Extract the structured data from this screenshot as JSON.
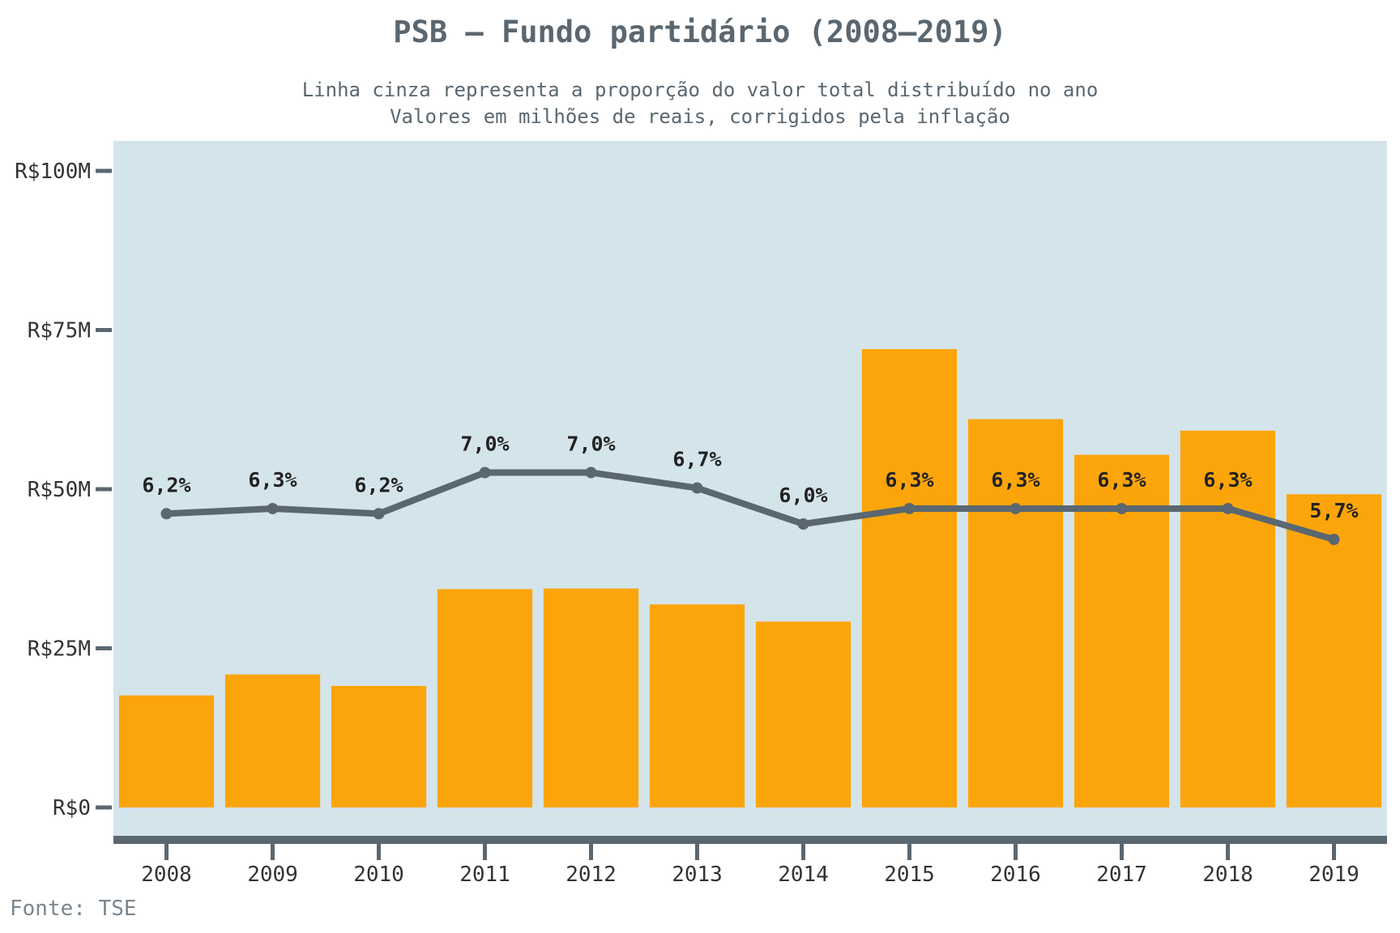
{
  "title": "PSB – Fundo partidário (2008–2019)",
  "subtitle_lines": [
    "Linha cinza representa a proporção do valor total distribuído no ano",
    "Valores em milhões de reais, corrigidos pela inflação"
  ],
  "source": "Fonte: TSE",
  "colors": {
    "bar": "#fca50a",
    "line": "#5a6770",
    "plot_background": "#d4e4eb",
    "text": "#5a6770",
    "label": "#222222"
  },
  "chart_data": {
    "type": "bar",
    "categories": [
      "2008",
      "2009",
      "2010",
      "2011",
      "2012",
      "2013",
      "2014",
      "2015",
      "2016",
      "2017",
      "2018",
      "2019"
    ],
    "values": [
      17.6,
      20.9,
      19.1,
      34.3,
      34.4,
      31.9,
      29.2,
      72.0,
      61.0,
      55.4,
      59.2,
      49.2
    ],
    "value_unit": "R$ milhões",
    "ylim": [
      0,
      105
    ],
    "yticks": [
      0,
      25,
      50,
      75,
      100
    ],
    "ytick_labels": [
      "R$0",
      "R$25M",
      "R$50M",
      "R$75M",
      "R$100M"
    ],
    "xlabel": "",
    "ylabel": "",
    "grid": false,
    "line_series": {
      "values_percent": [
        6.2,
        6.3,
        6.2,
        7.0,
        7.0,
        6.7,
        6.0,
        6.3,
        6.3,
        6.3,
        6.3,
        5.7
      ],
      "labels": [
        "6,2%",
        "6,3%",
        "6,2%",
        "7,0%",
        "7,0%",
        "6,7%",
        "6,0%",
        "6,3%",
        "6,3%",
        "6,3%",
        "6,3%",
        "5,7%"
      ]
    }
  }
}
